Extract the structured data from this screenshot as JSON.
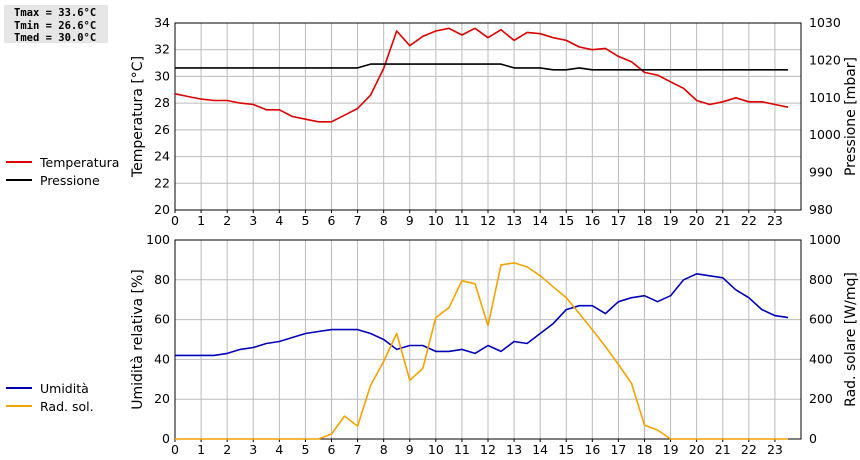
{
  "stats": {
    "tmax": "Tmax = 33.6°C",
    "tmin": "Tmin = 26.6°C",
    "tmed": "Tmed = 30.0°C"
  },
  "colors": {
    "temperature": "#dd0000",
    "pressure": "#000000",
    "humidity": "#0000bb",
    "solar": "#f5a300",
    "grid": "#bbbbbb"
  },
  "chart_data": [
    {
      "type": "line",
      "ylabel": "Temperatura [°C]",
      "ylabel_right": "Pressione [mbar]",
      "xlim": [
        0,
        24
      ],
      "x_ticks": [
        0,
        1,
        2,
        3,
        4,
        5,
        6,
        7,
        8,
        9,
        10,
        11,
        12,
        13,
        14,
        15,
        16,
        17,
        18,
        19,
        20,
        21,
        22,
        23
      ],
      "ylim": [
        20,
        34
      ],
      "y_ticks": [
        20,
        22,
        24,
        26,
        28,
        30,
        32,
        34
      ],
      "ylim_right": [
        980,
        1030
      ],
      "y_ticks_right": [
        980,
        990,
        1000,
        1010,
        1020,
        1030
      ],
      "grid": true,
      "legend": "left",
      "series": [
        {
          "name": "Temperatura",
          "axis": "left",
          "x": [
            0,
            0.5,
            1,
            1.5,
            2,
            2.5,
            3,
            3.5,
            4,
            4.5,
            5,
            5.5,
            6,
            6.5,
            7,
            7.5,
            8,
            8.5,
            9,
            9.5,
            10,
            10.5,
            11,
            11.5,
            12,
            12.5,
            13,
            13.5,
            14,
            14.5,
            15,
            15.5,
            16,
            16.5,
            17,
            17.5,
            18,
            18.5,
            19,
            19.5,
            20,
            20.5,
            21,
            21.5,
            22,
            22.5,
            23,
            23.5
          ],
          "values": [
            28.7,
            28.5,
            28.3,
            28.2,
            28.2,
            28.0,
            27.9,
            27.5,
            27.5,
            27.0,
            26.8,
            26.6,
            26.6,
            27.1,
            27.6,
            28.6,
            30.6,
            33.4,
            32.3,
            33.0,
            33.4,
            33.6,
            33.1,
            33.6,
            32.9,
            33.5,
            32.7,
            33.3,
            33.2,
            32.9,
            32.7,
            32.2,
            32.0,
            32.1,
            31.5,
            31.1,
            30.3,
            30.1,
            29.6,
            29.1,
            28.2,
            27.9,
            28.1,
            28.4,
            28.1,
            28.1,
            27.9,
            27.7
          ]
        },
        {
          "name": "Pressione",
          "axis": "right",
          "x": [
            0,
            7,
            7.5,
            12.5,
            13,
            14,
            14.5,
            15,
            15.5,
            16,
            17,
            23.5
          ],
          "values": [
            1018,
            1018,
            1019,
            1019,
            1018,
            1018,
            1017.5,
            1017.5,
            1018,
            1017.5,
            1017.5,
            1017.5
          ]
        }
      ]
    },
    {
      "type": "line",
      "ylabel": "Umidità relativa [%]",
      "ylabel_right": "Rad. solare [W/mq]",
      "xlim": [
        0,
        24
      ],
      "x_ticks": [
        0,
        1,
        2,
        3,
        4,
        5,
        6,
        7,
        8,
        9,
        10,
        11,
        12,
        13,
        14,
        15,
        16,
        17,
        18,
        19,
        20,
        21,
        22,
        23
      ],
      "ylim": [
        0,
        100
      ],
      "y_ticks": [
        0,
        20,
        40,
        60,
        80,
        100
      ],
      "ylim_right": [
        0,
        1000
      ],
      "y_ticks_right": [
        0,
        200,
        400,
        600,
        800,
        1000
      ],
      "grid": true,
      "legend": "left",
      "series": [
        {
          "name": "Umidità",
          "axis": "left",
          "x": [
            0,
            0.5,
            1,
            1.5,
            2,
            2.5,
            3,
            3.5,
            4,
            4.5,
            5,
            5.5,
            6,
            6.5,
            7,
            7.5,
            8,
            8.5,
            9,
            9.5,
            10,
            10.5,
            11,
            11.5,
            12,
            12.5,
            13,
            13.5,
            14,
            14.5,
            15,
            15.5,
            16,
            16.5,
            17,
            17.5,
            18,
            18.5,
            19,
            19.5,
            20,
            20.5,
            21,
            21.5,
            22,
            22.5,
            23,
            23.5
          ],
          "values": [
            42,
            42,
            42,
            42,
            43,
            45,
            46,
            48,
            49,
            51,
            53,
            54,
            55,
            55,
            55,
            53,
            50,
            45,
            47,
            47,
            44,
            44,
            45,
            43,
            47,
            44,
            49,
            48,
            53,
            58,
            65,
            67,
            67,
            63,
            69,
            71,
            72,
            69,
            72,
            80,
            83,
            82,
            81,
            75,
            71,
            65,
            62,
            61
          ]
        },
        {
          "name": "Rad. sol.",
          "axis": "right",
          "x": [
            0,
            0.5,
            1,
            1.5,
            2,
            2.5,
            3,
            3.5,
            4,
            4.5,
            5,
            5.5,
            6,
            6.5,
            7,
            7.5,
            8,
            8.5,
            9,
            9.5,
            10,
            10.5,
            11,
            11.5,
            12,
            12.5,
            13,
            13.5,
            14,
            14.5,
            15,
            15.5,
            16,
            16.5,
            17,
            17.5,
            18,
            18.5,
            19,
            19.5,
            20,
            20.5,
            21,
            21.5,
            22,
            22.5,
            23,
            23.5
          ],
          "values": [
            0,
            0,
            0,
            0,
            0,
            0,
            0,
            0,
            0,
            0,
            0,
            0,
            25,
            115,
            65,
            270,
            390,
            530,
            295,
            355,
            610,
            660,
            795,
            780,
            570,
            875,
            885,
            865,
            820,
            765,
            710,
            630,
            550,
            465,
            375,
            280,
            70,
            45,
            0,
            0,
            0,
            0,
            0,
            0,
            0,
            0,
            0,
            0
          ]
        }
      ]
    }
  ]
}
